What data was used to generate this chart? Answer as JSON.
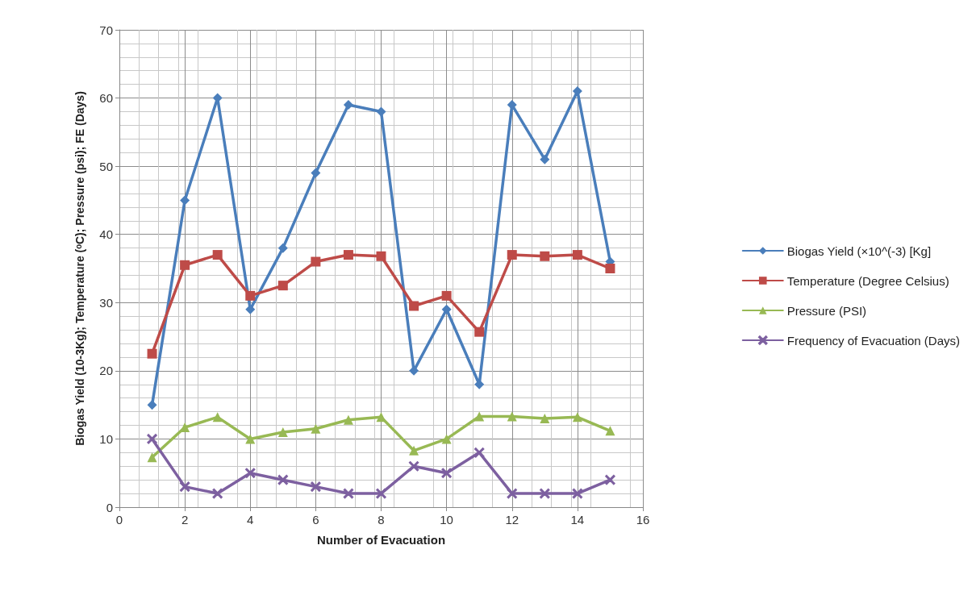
{
  "chart_data": {
    "type": "line",
    "xlabel": "Number of Evacuation",
    "ylabel": "Biogas Yield (10-3Kg); Temperature (ᵒC); Pressure (psi); FE (Days)",
    "x": [
      1,
      2,
      3,
      4,
      5,
      6,
      7,
      8,
      9,
      10,
      11,
      12,
      13,
      14,
      15
    ],
    "series": [
      {
        "name": "Biogas Yield (×10^(-3) [Kg]",
        "color": "#4a7ebb",
        "marker": "diamond",
        "values": [
          15,
          45,
          60,
          29,
          38,
          49,
          59,
          58,
          20,
          29,
          18,
          59,
          51,
          61,
          36
        ]
      },
      {
        "name": "Temperature (Degree Celsius)",
        "color": "#be4b48",
        "marker": "square",
        "values": [
          22.5,
          35.5,
          37,
          31,
          32.5,
          36,
          37,
          36.8,
          29.5,
          31,
          25.7,
          37,
          36.8,
          37,
          35
        ]
      },
      {
        "name": "Pressure (PSI)",
        "color": "#98b954",
        "marker": "triangle",
        "values": [
          7.3,
          11.7,
          13.2,
          10,
          11,
          11.5,
          12.8,
          13.2,
          8.3,
          10,
          13.3,
          13.3,
          13,
          13.2,
          11.2
        ]
      },
      {
        "name": "Frequency of Evacuation (Days)",
        "color": "#7d60a0",
        "marker": "cross",
        "values": [
          10,
          3,
          2,
          5,
          4,
          3,
          2,
          2,
          6,
          5,
          8,
          2,
          2,
          2,
          4
        ]
      }
    ],
    "xlim": [
      0,
      16
    ],
    "xticks": [
      0,
      2,
      4,
      6,
      8,
      10,
      12,
      14,
      16
    ],
    "ylim": [
      0,
      70
    ],
    "yticks": [
      0,
      10,
      20,
      30,
      40,
      50,
      60,
      70
    ],
    "grid": true,
    "legend": "right",
    "line_style": "solid"
  }
}
